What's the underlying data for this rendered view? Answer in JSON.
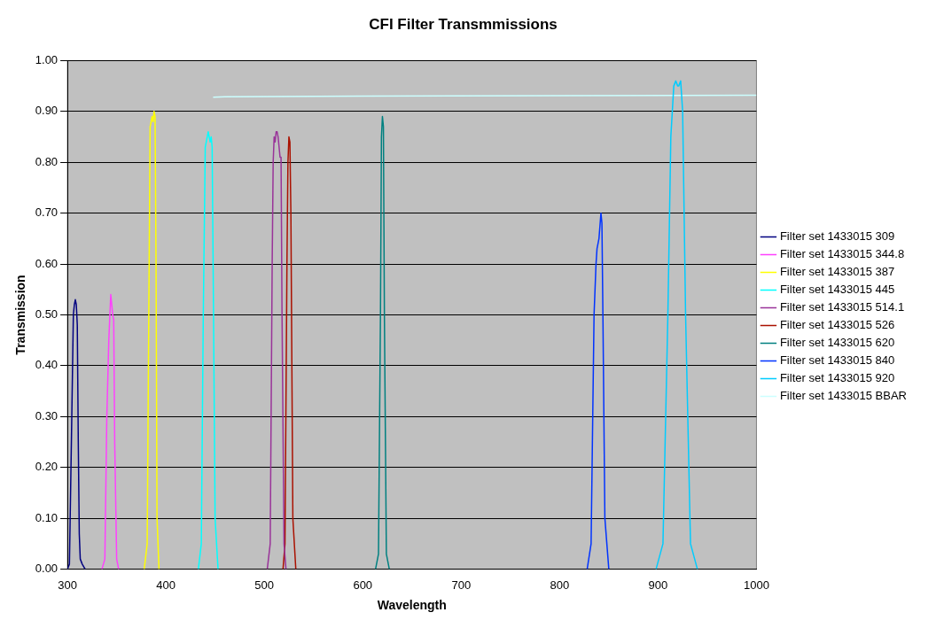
{
  "chart_data": {
    "type": "line",
    "title": "CFI Filter Transmmissions",
    "xlabel": "Wavelength",
    "ylabel": "Transmission",
    "xlim": [
      300,
      1000
    ],
    "xticks": [
      300,
      400,
      500,
      600,
      700,
      800,
      900,
      1000
    ],
    "ylim": [
      0,
      1
    ],
    "yticks": [
      {
        "value": 0,
        "label": "0.00"
      },
      {
        "value": 0.1,
        "label": "0.10"
      },
      {
        "value": 0.2,
        "label": "0.20"
      },
      {
        "value": 0.3,
        "label": "0.30"
      },
      {
        "value": 0.4,
        "label": "0.40"
      },
      {
        "value": 0.5,
        "label": "0.50"
      },
      {
        "value": 0.6,
        "label": "0.60"
      },
      {
        "value": 0.7,
        "label": "0.70"
      },
      {
        "value": 0.8,
        "label": "0.80"
      },
      {
        "value": 0.9,
        "label": "0.90"
      },
      {
        "value": 1,
        "label": "1.00"
      }
    ],
    "grid": "y",
    "legend": "right",
    "marker": "none",
    "series": [
      {
        "name": "Filter set 1433015 309",
        "color": "#000080",
        "x": [
          300,
          302,
          304,
          306,
          307,
          308,
          309,
          310,
          311,
          312,
          313,
          315,
          318
        ],
        "values": [
          0,
          0.01,
          0.25,
          0.5,
          0.52,
          0.53,
          0.52,
          0.48,
          0.25,
          0.07,
          0.02,
          0.01,
          0
        ]
      },
      {
        "name": "Filter set 1433015 344.8",
        "color": "#ff40ff",
        "x": [
          335,
          338,
          340,
          342,
          344,
          345,
          346,
          347,
          348,
          350,
          352
        ],
        "values": [
          0,
          0.02,
          0.3,
          0.45,
          0.54,
          0.52,
          0.5,
          0.49,
          0.25,
          0.02,
          0
        ]
      },
      {
        "name": "Filter set 1433015 387",
        "color": "#ffff00",
        "x": [
          378,
          381,
          383,
          384,
          385,
          386,
          387,
          388,
          389,
          390,
          391,
          393
        ],
        "values": [
          0,
          0.05,
          0.6,
          0.87,
          0.88,
          0.89,
          0.88,
          0.9,
          0.89,
          0.6,
          0.1,
          0
        ]
      },
      {
        "name": "Filter set 1433015 445",
        "color": "#00ffff",
        "x": [
          433,
          436,
          438,
          440,
          441,
          443,
          444,
          445,
          446,
          447,
          448,
          450,
          453
        ],
        "values": [
          0,
          0.05,
          0.5,
          0.83,
          0.84,
          0.86,
          0.85,
          0.84,
          0.85,
          0.83,
          0.6,
          0.1,
          0
        ]
      },
      {
        "name": "Filter set 1433015 514.1",
        "color": "#993399",
        "x": [
          503,
          506,
          508,
          509,
          510,
          511,
          512,
          513,
          514,
          515,
          516,
          517,
          518,
          520,
          522
        ],
        "values": [
          0,
          0.05,
          0.6,
          0.8,
          0.85,
          0.84,
          0.86,
          0.86,
          0.85,
          0.83,
          0.81,
          0.81,
          0.5,
          0.05,
          0
        ]
      },
      {
        "name": "Filter set 1433015 526",
        "color": "#aa1100",
        "x": [
          519,
          521,
          523,
          524,
          525,
          526,
          527,
          529,
          532
        ],
        "values": [
          0,
          0.05,
          0.6,
          0.8,
          0.85,
          0.84,
          0.7,
          0.1,
          0
        ]
      },
      {
        "name": "Filter set 1433015 620",
        "color": "#008080",
        "x": [
          613,
          616,
          618,
          619,
          620,
          621,
          622,
          624,
          627
        ],
        "values": [
          0,
          0.03,
          0.5,
          0.85,
          0.89,
          0.87,
          0.5,
          0.03,
          0
        ]
      },
      {
        "name": "Filter set 1433015 840",
        "color": "#0033ff",
        "x": [
          828,
          832,
          835,
          837,
          838,
          840,
          842,
          843,
          844,
          846,
          850
        ],
        "values": [
          0,
          0.05,
          0.5,
          0.6,
          0.63,
          0.65,
          0.7,
          0.68,
          0.5,
          0.1,
          0
        ]
      },
      {
        "name": "Filter set 1433015 920",
        "color": "#00ccff",
        "x": [
          898,
          905,
          910,
          913,
          916,
          918,
          920,
          921,
          923,
          925,
          928,
          933,
          940
        ],
        "values": [
          0,
          0.05,
          0.5,
          0.85,
          0.95,
          0.96,
          0.95,
          0.95,
          0.96,
          0.9,
          0.5,
          0.05,
          0
        ]
      },
      {
        "name": "Filter set 1433015 BBAR",
        "color": "#ccffff",
        "x": [
          448,
          460,
          600,
          800,
          1000
        ],
        "values": [
          0.928,
          0.929,
          0.93,
          0.931,
          0.932
        ]
      }
    ]
  }
}
